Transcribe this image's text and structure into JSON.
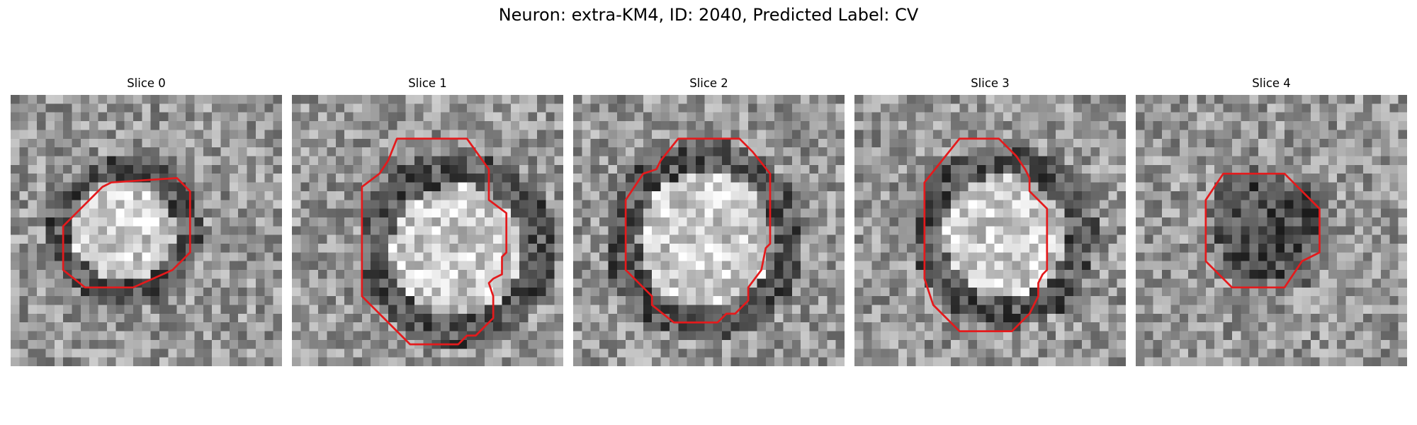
{
  "figure": {
    "title": "Neuron: extra-KM4, ID: 2040, Predicted Label: CV"
  },
  "slices": [
    {
      "title": "Slice 0",
      "core": "bright",
      "contour": [
        [
          19,
          9.5
        ],
        [
          20.5,
          11
        ],
        [
          20.5,
          18
        ],
        [
          18.5,
          20
        ],
        [
          14,
          22
        ],
        [
          8.5,
          22
        ],
        [
          6,
          20
        ],
        [
          6,
          15
        ],
        [
          7,
          14
        ],
        [
          10.5,
          10.5
        ],
        [
          11.5,
          10
        ]
      ]
    },
    {
      "title": "Slice 1",
      "core": "bright",
      "contour": [
        [
          12,
          5
        ],
        [
          20,
          5
        ],
        [
          22.5,
          8.5
        ],
        [
          22.5,
          12
        ],
        [
          24.5,
          13.5
        ],
        [
          24.5,
          18
        ],
        [
          24,
          18.5
        ],
        [
          24,
          20.5
        ],
        [
          23,
          21
        ],
        [
          22.5,
          21.5
        ],
        [
          23,
          23
        ],
        [
          23,
          25.5
        ],
        [
          21,
          27.5
        ],
        [
          20,
          27.5
        ],
        [
          19,
          28.5
        ],
        [
          13.5,
          28.5
        ],
        [
          8,
          23
        ],
        [
          8,
          10.5
        ],
        [
          10,
          9
        ],
        [
          11,
          7.5
        ]
      ]
    },
    {
      "title": "Slice 2",
      "core": "bright",
      "contour": [
        [
          12,
          5
        ],
        [
          19,
          5
        ],
        [
          20.5,
          6.5
        ],
        [
          22.5,
          9
        ],
        [
          22.5,
          17
        ],
        [
          22,
          17.5
        ],
        [
          21.5,
          20
        ],
        [
          20,
          22
        ],
        [
          20,
          23.5
        ],
        [
          18.5,
          25
        ],
        [
          17.5,
          25
        ],
        [
          16.5,
          26
        ],
        [
          11.5,
          26
        ],
        [
          9,
          24
        ],
        [
          9,
          23
        ],
        [
          6,
          20
        ],
        [
          6,
          12
        ],
        [
          8,
          9
        ],
        [
          9.5,
          8.5
        ],
        [
          10,
          7.5
        ]
      ]
    },
    {
      "title": "Slice 3",
      "core": "bright",
      "contour": [
        [
          12,
          5
        ],
        [
          16.5,
          5
        ],
        [
          18.5,
          7
        ],
        [
          19.5,
          8.5
        ],
        [
          20,
          9.5
        ],
        [
          20,
          11
        ],
        [
          21.5,
          12.5
        ],
        [
          22,
          13
        ],
        [
          22,
          20
        ],
        [
          21.5,
          20.5
        ],
        [
          21,
          21.5
        ],
        [
          21,
          23
        ],
        [
          20,
          25
        ],
        [
          18,
          27
        ],
        [
          12,
          27
        ],
        [
          9,
          24
        ],
        [
          8,
          21
        ],
        [
          8,
          10
        ]
      ]
    },
    {
      "title": "Slice 4",
      "core": "dark",
      "contour": [
        [
          10,
          9
        ],
        [
          17,
          9
        ],
        [
          19,
          11
        ],
        [
          21,
          13
        ],
        [
          21,
          18
        ],
        [
          19,
          19
        ],
        [
          17,
          22
        ],
        [
          11,
          22
        ],
        [
          8,
          19
        ],
        [
          8,
          12
        ]
      ]
    }
  ],
  "colors": {
    "contour": "#e41a1c",
    "background": "#ffffff"
  }
}
